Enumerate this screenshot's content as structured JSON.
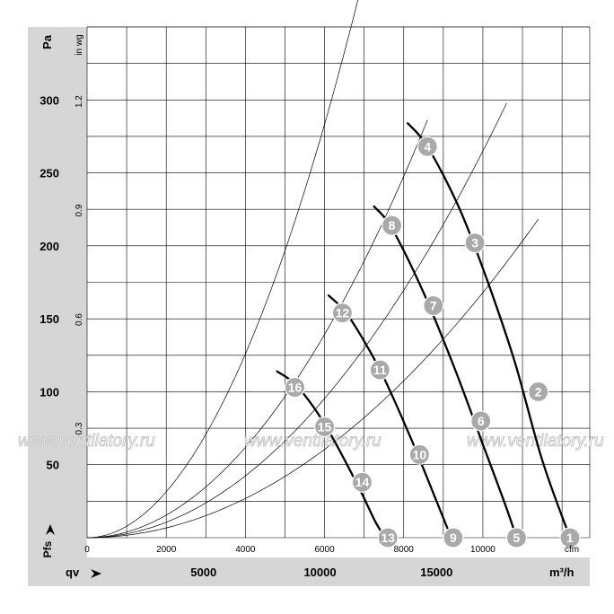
{
  "chart_data": {
    "type": "line",
    "title": "",
    "y_unit_left": "Pa",
    "y_unit_inner": "in wg",
    "x_unit_inner": "cfm",
    "x_unit_bottom": "m³/h",
    "y_axis_symbol": "Pfs",
    "x_axis_symbol": "qv",
    "xlim_cfm": [
      0,
      12700
    ],
    "ylim_pa": [
      0,
      350
    ],
    "pa_ticks": [
      {
        "v": 50,
        "t": "50"
      },
      {
        "v": 100,
        "t": "100"
      },
      {
        "v": 150,
        "t": "150"
      },
      {
        "v": 200,
        "t": "200"
      },
      {
        "v": 250,
        "t": "250"
      },
      {
        "v": 300,
        "t": "300"
      }
    ],
    "inwg_ticks": [
      {
        "v": 0.3,
        "t": "0.3"
      },
      {
        "v": 0.6,
        "t": "0.6"
      },
      {
        "v": 0.9,
        "t": "0.9"
      },
      {
        "v": 1.2,
        "t": "1.2"
      }
    ],
    "cfm_ticks": [
      {
        "v": 0,
        "t": "0"
      },
      {
        "v": 2000,
        "t": "2000"
      },
      {
        "v": 4000,
        "t": "4000"
      },
      {
        "v": 6000,
        "t": "6000"
      },
      {
        "v": 8000,
        "t": "8000"
      },
      {
        "v": 10000,
        "t": "10000"
      }
    ],
    "m3h_ticks": [
      {
        "v": 5000,
        "t": "5000"
      },
      {
        "v": 10000,
        "t": "10000"
      },
      {
        "v": 15000,
        "t": "15000"
      }
    ],
    "fan_curves": [
      {
        "points": [
          [
            8100,
            284
          ],
          [
            8600,
            268
          ],
          [
            9400,
            226
          ],
          [
            10100,
            177
          ],
          [
            10800,
            121
          ],
          [
            11500,
            53
          ],
          [
            12200,
            0
          ]
        ]
      },
      {
        "points": [
          [
            7250,
            227
          ],
          [
            7700,
            212
          ],
          [
            8500,
            168
          ],
          [
            9300,
            115
          ],
          [
            10000,
            64
          ],
          [
            10600,
            20
          ],
          [
            10850,
            0
          ]
        ]
      },
      {
        "points": [
          [
            6100,
            166
          ],
          [
            6600,
            152
          ],
          [
            7400,
            115
          ],
          [
            8150,
            70
          ],
          [
            8800,
            27
          ],
          [
            9200,
            0
          ]
        ]
      },
      {
        "points": [
          [
            4800,
            114
          ],
          [
            5300,
            104
          ],
          [
            6000,
            78
          ],
          [
            6800,
            38
          ],
          [
            7300,
            10
          ],
          [
            7550,
            0
          ]
        ]
      }
    ],
    "system_curves": [
      {
        "k": 3.87e-06,
        "x_max": 8600
      },
      {
        "k": 7.87e-06,
        "x_max": 7700
      },
      {
        "k": 2.65e-06,
        "x_max": 10600
      },
      {
        "k": 1.68e-06,
        "x_max": 11400
      }
    ],
    "markers": [
      {
        "label": "1",
        "x": 12200,
        "y": 0
      },
      {
        "label": "2",
        "x": 11400,
        "y": 100
      },
      {
        "label": "3",
        "x": 9800,
        "y": 202
      },
      {
        "label": "4",
        "x": 8600,
        "y": 268
      },
      {
        "label": "5",
        "x": 10850,
        "y": 0
      },
      {
        "label": "6",
        "x": 9950,
        "y": 80
      },
      {
        "label": "7",
        "x": 8750,
        "y": 159
      },
      {
        "label": "8",
        "x": 7700,
        "y": 214
      },
      {
        "label": "9",
        "x": 9250,
        "y": 0
      },
      {
        "label": "10",
        "x": 8400,
        "y": 57
      },
      {
        "label": "11",
        "x": 7400,
        "y": 115
      },
      {
        "label": "12",
        "x": 6450,
        "y": 154
      },
      {
        "label": "13",
        "x": 7600,
        "y": 0
      },
      {
        "label": "14",
        "x": 6950,
        "y": 38
      },
      {
        "label": "15",
        "x": 6000,
        "y": 76
      },
      {
        "label": "16",
        "x": 5250,
        "y": 103
      }
    ]
  },
  "watermark": "www.ventilatory.ru"
}
